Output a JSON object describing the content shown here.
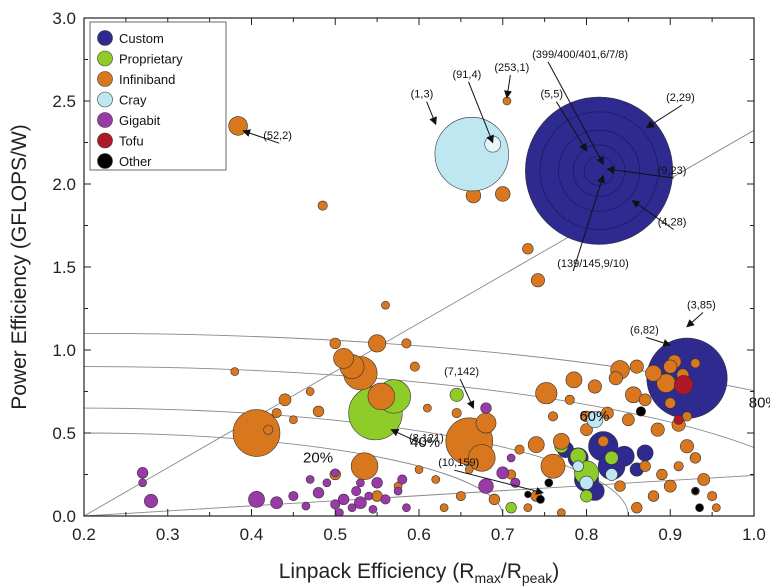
{
  "chart_data": {
    "type": "scatter",
    "xlabel": "Linpack Efficiency (R",
    "xlabel_sub1": "max",
    "xlabel_mid": "/R",
    "xlabel_sub2": "peak",
    "xlabel_end": ")",
    "ylabel": "Power Efficiency (GFLOPS/W)",
    "xlim": [
      0.2,
      1.0
    ],
    "ylim": [
      0.0,
      3.0
    ],
    "xticks": [
      "0.2",
      "0.3",
      "0.4",
      "0.5",
      "0.6",
      "0.7",
      "0.8",
      "0.9",
      "1.0"
    ],
    "yticks": [
      "0.0",
      "0.5",
      "1.0",
      "1.5",
      "2.0",
      "2.5",
      "3.0"
    ],
    "legend_position": "top-left",
    "series": [
      {
        "name": "Custom",
        "color": "#2e2a8f",
        "points": [
          [
            0.815,
            2.08,
            0.11
          ],
          [
            0.92,
            0.83,
            0.06
          ],
          [
            0.82,
            0.42,
            0.022
          ],
          [
            0.83,
            0.3,
            0.02
          ],
          [
            0.8,
            0.22,
            0.018
          ],
          [
            0.845,
            0.36,
            0.015
          ],
          [
            0.79,
            0.35,
            0.015
          ],
          [
            0.87,
            0.38,
            0.012
          ],
          [
            0.81,
            0.15,
            0.014
          ],
          [
            0.775,
            0.4,
            0.012
          ],
          [
            0.86,
            0.28,
            0.01
          ]
        ]
      },
      {
        "name": "Proprietary",
        "color": "#8fcc2a",
        "points": [
          [
            0.548,
            0.62,
            0.04
          ],
          [
            0.57,
            0.72,
            0.025
          ],
          [
            0.645,
            0.73,
            0.01
          ],
          [
            0.8,
            0.26,
            0.018
          ],
          [
            0.79,
            0.36,
            0.012
          ],
          [
            0.71,
            0.05,
            0.008
          ],
          [
            0.77,
            0.42,
            0.01
          ],
          [
            0.8,
            0.12,
            0.009
          ],
          [
            0.83,
            0.35,
            0.01
          ]
        ]
      },
      {
        "name": "Infiniband",
        "color": "#d9771e",
        "points": [
          [
            0.384,
            2.35,
            0.014
          ],
          [
            0.485,
            1.87,
            0.007
          ],
          [
            0.665,
            1.93,
            0.011
          ],
          [
            0.7,
            1.94,
            0.011
          ],
          [
            0.705,
            2.5,
            0.006
          ],
          [
            0.73,
            1.61,
            0.008
          ],
          [
            0.742,
            1.42,
            0.01
          ],
          [
            0.406,
            0.5,
            0.035
          ],
          [
            0.53,
            0.86,
            0.025
          ],
          [
            0.52,
            0.9,
            0.018
          ],
          [
            0.51,
            0.95,
            0.015
          ],
          [
            0.55,
            1.04,
            0.013
          ],
          [
            0.555,
            0.72,
            0.02
          ],
          [
            0.535,
            0.3,
            0.02
          ],
          [
            0.66,
            0.45,
            0.035
          ],
          [
            0.675,
            0.35,
            0.02
          ],
          [
            0.68,
            0.56,
            0.015
          ],
          [
            0.752,
            0.74,
            0.016
          ],
          [
            0.77,
            0.45,
            0.012
          ],
          [
            0.76,
            0.3,
            0.018
          ],
          [
            0.74,
            0.43,
            0.012
          ],
          [
            0.785,
            0.82,
            0.012
          ],
          [
            0.81,
            0.78,
            0.01
          ],
          [
            0.84,
            0.88,
            0.014
          ],
          [
            0.856,
            0.73,
            0.012
          ],
          [
            0.88,
            0.86,
            0.012
          ],
          [
            0.895,
            0.8,
            0.014
          ],
          [
            0.905,
            0.93,
            0.01
          ],
          [
            0.885,
            0.52,
            0.01
          ],
          [
            0.91,
            0.55,
            0.01
          ],
          [
            0.92,
            0.42,
            0.01
          ],
          [
            0.93,
            0.35,
            0.008
          ],
          [
            0.94,
            0.22,
            0.009
          ],
          [
            0.9,
            0.18,
            0.009
          ],
          [
            0.88,
            0.12,
            0.008
          ],
          [
            0.86,
            0.05,
            0.008
          ],
          [
            0.84,
            0.18,
            0.008
          ],
          [
            0.82,
            0.45,
            0.008
          ],
          [
            0.8,
            0.6,
            0.008
          ],
          [
            0.78,
            0.7,
            0.007
          ],
          [
            0.76,
            0.6,
            0.007
          ],
          [
            0.72,
            0.4,
            0.007
          ],
          [
            0.71,
            0.25,
            0.007
          ],
          [
            0.69,
            0.1,
            0.008
          ],
          [
            0.65,
            0.12,
            0.007
          ],
          [
            0.63,
            0.05,
            0.006
          ],
          [
            0.62,
            0.22,
            0.006
          ],
          [
            0.6,
            0.28,
            0.006
          ],
          [
            0.66,
            0.28,
            0.006
          ],
          [
            0.645,
            0.62,
            0.007
          ],
          [
            0.61,
            0.65,
            0.006
          ],
          [
            0.48,
            0.63,
            0.008
          ],
          [
            0.44,
            0.7,
            0.009
          ],
          [
            0.43,
            0.62,
            0.007
          ],
          [
            0.42,
            0.52,
            0.007
          ],
          [
            0.45,
            0.58,
            0.006
          ],
          [
            0.47,
            0.75,
            0.006
          ],
          [
            0.5,
            1.04,
            0.008
          ],
          [
            0.56,
            1.27,
            0.006
          ],
          [
            0.585,
            1.04,
            0.007
          ],
          [
            0.595,
            0.9,
            0.007
          ],
          [
            0.5,
            0.25,
            0.008
          ],
          [
            0.55,
            0.12,
            0.008
          ],
          [
            0.575,
            0.18,
            0.006
          ],
          [
            0.38,
            0.87,
            0.006
          ],
          [
            0.74,
            0.12,
            0.008
          ],
          [
            0.73,
            0.05,
            0.006
          ],
          [
            0.77,
            0.02,
            0.006
          ],
          [
            0.95,
            0.12,
            0.007
          ],
          [
            0.955,
            0.05,
            0.006
          ],
          [
            0.87,
            0.3,
            0.008
          ],
          [
            0.89,
            0.25,
            0.008
          ],
          [
            0.91,
            0.3,
            0.007
          ],
          [
            0.93,
            0.15,
            0.006
          ],
          [
            0.85,
            0.58,
            0.009
          ],
          [
            0.825,
            0.62,
            0.009
          ],
          [
            0.8,
            0.52,
            0.009
          ],
          [
            0.835,
            0.83,
            0.01
          ],
          [
            0.87,
            0.7,
            0.009
          ],
          [
            0.9,
            0.68,
            0.008
          ],
          [
            0.92,
            0.6,
            0.007
          ],
          [
            0.86,
            0.9,
            0.01
          ],
          [
            0.9,
            0.9,
            0.01
          ],
          [
            0.915,
            0.85,
            0.009
          ],
          [
            0.93,
            0.92,
            0.007
          ]
        ]
      },
      {
        "name": "Cray",
        "color": "#bfe7f2",
        "points": [
          [
            0.663,
            2.18,
            0.055
          ],
          [
            0.688,
            2.24,
            0.004
          ],
          [
            0.81,
            0.58,
            0.012
          ],
          [
            0.8,
            0.2,
            0.01
          ],
          [
            0.83,
            0.25,
            0.009
          ],
          [
            0.79,
            0.3,
            0.008
          ]
        ]
      },
      {
        "name": "Gigabit",
        "color": "#9a3aa8",
        "points": [
          [
            0.27,
            0.26,
            0.008
          ],
          [
            0.27,
            0.2,
            0.006
          ],
          [
            0.28,
            0.09,
            0.01
          ],
          [
            0.406,
            0.1,
            0.012
          ],
          [
            0.43,
            0.08,
            0.009
          ],
          [
            0.45,
            0.12,
            0.007
          ],
          [
            0.465,
            0.06,
            0.006
          ],
          [
            0.48,
            0.14,
            0.008
          ],
          [
            0.5,
            0.07,
            0.007
          ],
          [
            0.505,
            0.02,
            0.006
          ],
          [
            0.51,
            0.1,
            0.008
          ],
          [
            0.52,
            0.05,
            0.006
          ],
          [
            0.525,
            0.15,
            0.007
          ],
          [
            0.53,
            0.08,
            0.009
          ],
          [
            0.54,
            0.12,
            0.006
          ],
          [
            0.545,
            0.04,
            0.006
          ],
          [
            0.55,
            0.2,
            0.008
          ],
          [
            0.56,
            0.1,
            0.007
          ],
          [
            0.575,
            0.15,
            0.006
          ],
          [
            0.58,
            0.22,
            0.007
          ],
          [
            0.585,
            0.05,
            0.006
          ],
          [
            0.49,
            0.2,
            0.006
          ],
          [
            0.47,
            0.22,
            0.006
          ],
          [
            0.68,
            0.65,
            0.008
          ],
          [
            0.68,
            0.18,
            0.011
          ],
          [
            0.7,
            0.26,
            0.009
          ],
          [
            0.71,
            0.35,
            0.006
          ],
          [
            0.715,
            0.2,
            0.007
          ],
          [
            0.5,
            0.26,
            0.006
          ],
          [
            0.53,
            0.2,
            0.006
          ]
        ]
      },
      {
        "name": "Tofu",
        "color": "#b0182a",
        "points": [
          [
            0.916,
            0.79,
            0.014
          ],
          [
            0.91,
            0.58,
            0.007
          ]
        ]
      },
      {
        "name": "Other",
        "color": "#000000",
        "points": [
          [
            0.865,
            0.63,
            0.007
          ],
          [
            0.935,
            0.05,
            0.006
          ],
          [
            0.93,
            0.15,
            0.005
          ],
          [
            0.745,
            0.1,
            0.006
          ],
          [
            0.73,
            0.13,
            0.005
          ],
          [
            0.755,
            0.2,
            0.006
          ]
        ]
      }
    ],
    "arcs": [
      {
        "radius": 0.5,
        "label": "20%"
      },
      {
        "radius": 0.65,
        "label": "40%"
      },
      {
        "radius": 0.9,
        "label": "60%"
      },
      {
        "radius": 1.1,
        "label": "80%"
      }
    ],
    "rays": [
      {
        "angle_deg": 17
      },
      {
        "angle_deg": 71
      }
    ],
    "annotations": [
      {
        "text": "(52,2)",
        "tx": 0.414,
        "ty": 2.27,
        "ax": 0.39,
        "ay": 2.32
      },
      {
        "text": "(1,3)",
        "tx": 0.59,
        "ty": 2.52,
        "ax": 0.62,
        "ay": 2.36
      },
      {
        "text": "(91,4)",
        "tx": 0.64,
        "ty": 2.64,
        "ax": 0.688,
        "ay": 2.25
      },
      {
        "text": "(253,1)",
        "tx": 0.69,
        "ty": 2.68,
        "ax": 0.705,
        "ay": 2.52
      },
      {
        "text": "(399/400/401,6/7/8)",
        "tx": 0.735,
        "ty": 2.76,
        "ax": 0.82,
        "ay": 2.12
      },
      {
        "text": "(5,5)",
        "tx": 0.745,
        "ty": 2.52,
        "ax": 0.8,
        "ay": 2.2
      },
      {
        "text": "(2,29)",
        "tx": 0.895,
        "ty": 2.5,
        "ax": 0.872,
        "ay": 2.34
      },
      {
        "text": "(9,23)",
        "tx": 0.885,
        "ty": 2.06,
        "ax": 0.825,
        "ay": 2.09
      },
      {
        "text": "(4,28)",
        "tx": 0.885,
        "ty": 1.75,
        "ax": 0.855,
        "ay": 1.9
      },
      {
        "text": "(139/145,9/10)",
        "tx": 0.765,
        "ty": 1.5,
        "ax": 0.82,
        "ay": 2.05
      },
      {
        "text": "(3,85)",
        "tx": 0.92,
        "ty": 1.25,
        "ax": 0.92,
        "ay": 1.14
      },
      {
        "text": "(6,82)",
        "tx": 0.852,
        "ty": 1.1,
        "ax": 0.9,
        "ay": 1.03
      },
      {
        "text": "(7,142)",
        "tx": 0.63,
        "ty": 0.85,
        "ax": 0.665,
        "ay": 0.65
      },
      {
        "text": "(8,121)",
        "tx": 0.588,
        "ty": 0.45,
        "ax": 0.567,
        "ay": 0.52
      },
      {
        "text": "(10,159)",
        "tx": 0.623,
        "ty": 0.3,
        "ax": 0.748,
        "ay": 0.14
      }
    ]
  }
}
